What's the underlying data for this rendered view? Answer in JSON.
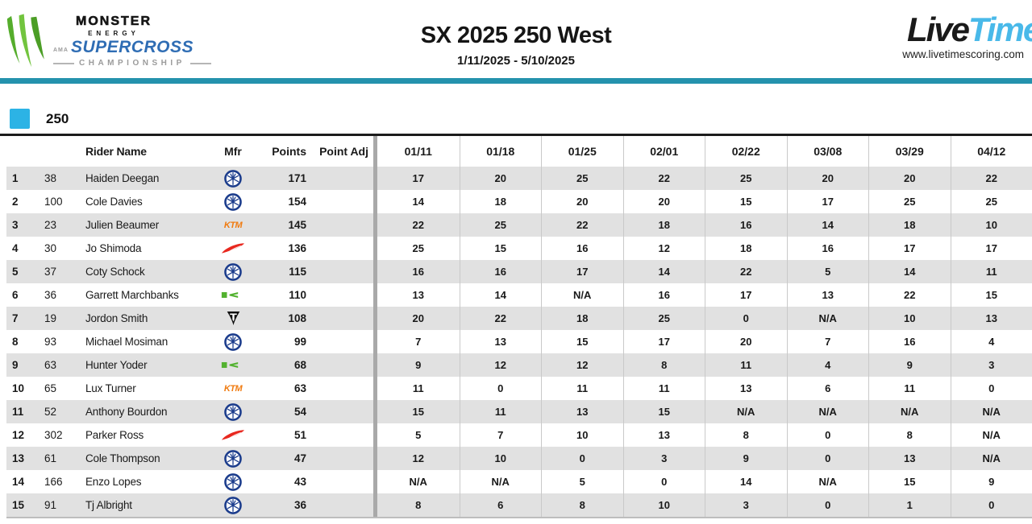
{
  "branding": {
    "monster": "MONSTER",
    "energy": "ENERGY",
    "ama": "AMA",
    "supercross": "SUPERCROSS",
    "championship": "CHAMPIONSHIP",
    "live": "Live",
    "time": "Time",
    "url": "www.livetimescoring.com"
  },
  "header": {
    "title": "SX 2025 250 West",
    "date_range": "1/11/2025 - 5/10/2025"
  },
  "class_label": "250",
  "icons": {
    "monster-claw-icon": "green monster claw M",
    "yamaha-logo-icon": "blue tuning-fork circle",
    "ktm-logo-icon": "orange KTM wordmark",
    "honda-logo-icon": "red wing",
    "kawasaki-logo-icon": "green river-mark K",
    "triumph-logo-icon": "black shield with T"
  },
  "mfr_logos": {
    "ktm_text": "KTM"
  },
  "colors": {
    "accent_teal": "#2492ad",
    "class_blue": "#2cb3e5",
    "supercross_blue": "#2f6db4",
    "monster_green": "#6cbf3f",
    "livetime_blue": "#49b9e9",
    "row_stripe": "#e1e1e1",
    "yamaha_blue": "#1b3c8c",
    "ktm_orange": "#f07b10",
    "honda_red": "#e8271e",
    "kawasaki_green": "#53b230",
    "triumph_black": "#111111"
  },
  "table": {
    "columns": {
      "rider": "Rider Name",
      "mfr": "Mfr",
      "points": "Points",
      "point_adj": "Point Adj"
    },
    "dates": [
      "01/11",
      "01/18",
      "01/25",
      "02/01",
      "02/22",
      "03/08",
      "03/29",
      "04/12"
    ],
    "rows": [
      {
        "pos": "1",
        "num": "38",
        "name": "Haiden Deegan",
        "mfr": "yamaha",
        "points": "171",
        "adj": "",
        "scores": [
          "17",
          "20",
          "25",
          "22",
          "25",
          "20",
          "20",
          "22"
        ]
      },
      {
        "pos": "2",
        "num": "100",
        "name": "Cole Davies",
        "mfr": "yamaha",
        "points": "154",
        "adj": "",
        "scores": [
          "14",
          "18",
          "20",
          "20",
          "15",
          "17",
          "25",
          "25"
        ]
      },
      {
        "pos": "3",
        "num": "23",
        "name": "Julien Beaumer",
        "mfr": "ktm",
        "points": "145",
        "adj": "",
        "scores": [
          "22",
          "25",
          "22",
          "18",
          "16",
          "14",
          "18",
          "10"
        ]
      },
      {
        "pos": "4",
        "num": "30",
        "name": "Jo Shimoda",
        "mfr": "honda",
        "points": "136",
        "adj": "",
        "scores": [
          "25",
          "15",
          "16",
          "12",
          "18",
          "16",
          "17",
          "17"
        ]
      },
      {
        "pos": "5",
        "num": "37",
        "name": "Coty Schock",
        "mfr": "yamaha",
        "points": "115",
        "adj": "",
        "scores": [
          "16",
          "16",
          "17",
          "14",
          "22",
          "5",
          "14",
          "11"
        ]
      },
      {
        "pos": "6",
        "num": "36",
        "name": "Garrett Marchbanks",
        "mfr": "kawasaki",
        "points": "110",
        "adj": "",
        "scores": [
          "13",
          "14",
          "N/A",
          "16",
          "17",
          "13",
          "22",
          "15"
        ]
      },
      {
        "pos": "7",
        "num": "19",
        "name": "Jordon Smith",
        "mfr": "triumph",
        "points": "108",
        "adj": "",
        "scores": [
          "20",
          "22",
          "18",
          "25",
          "0",
          "N/A",
          "10",
          "13"
        ]
      },
      {
        "pos": "8",
        "num": "93",
        "name": "Michael Mosiman",
        "mfr": "yamaha",
        "points": "99",
        "adj": "",
        "scores": [
          "7",
          "13",
          "15",
          "17",
          "20",
          "7",
          "16",
          "4"
        ]
      },
      {
        "pos": "9",
        "num": "63",
        "name": "Hunter Yoder",
        "mfr": "kawasaki",
        "points": "68",
        "adj": "",
        "scores": [
          "9",
          "12",
          "12",
          "8",
          "11",
          "4",
          "9",
          "3"
        ]
      },
      {
        "pos": "10",
        "num": "65",
        "name": "Lux Turner",
        "mfr": "ktm",
        "points": "63",
        "adj": "",
        "scores": [
          "11",
          "0",
          "11",
          "11",
          "13",
          "6",
          "11",
          "0"
        ]
      },
      {
        "pos": "11",
        "num": "52",
        "name": "Anthony Bourdon",
        "mfr": "yamaha",
        "points": "54",
        "adj": "",
        "scores": [
          "15",
          "11",
          "13",
          "15",
          "N/A",
          "N/A",
          "N/A",
          "N/A"
        ]
      },
      {
        "pos": "12",
        "num": "302",
        "name": "Parker Ross",
        "mfr": "honda",
        "points": "51",
        "adj": "",
        "scores": [
          "5",
          "7",
          "10",
          "13",
          "8",
          "0",
          "8",
          "N/A"
        ]
      },
      {
        "pos": "13",
        "num": "61",
        "name": "Cole Thompson",
        "mfr": "yamaha",
        "points": "47",
        "adj": "",
        "scores": [
          "12",
          "10",
          "0",
          "3",
          "9",
          "0",
          "13",
          "N/A"
        ]
      },
      {
        "pos": "14",
        "num": "166",
        "name": "Enzo Lopes",
        "mfr": "yamaha",
        "points": "43",
        "adj": "",
        "scores": [
          "N/A",
          "N/A",
          "5",
          "0",
          "14",
          "N/A",
          "15",
          "9"
        ]
      },
      {
        "pos": "15",
        "num": "91",
        "name": "Tj Albright",
        "mfr": "yamaha",
        "points": "36",
        "adj": "",
        "scores": [
          "8",
          "6",
          "8",
          "10",
          "3",
          "0",
          "1",
          "0"
        ]
      }
    ]
  }
}
